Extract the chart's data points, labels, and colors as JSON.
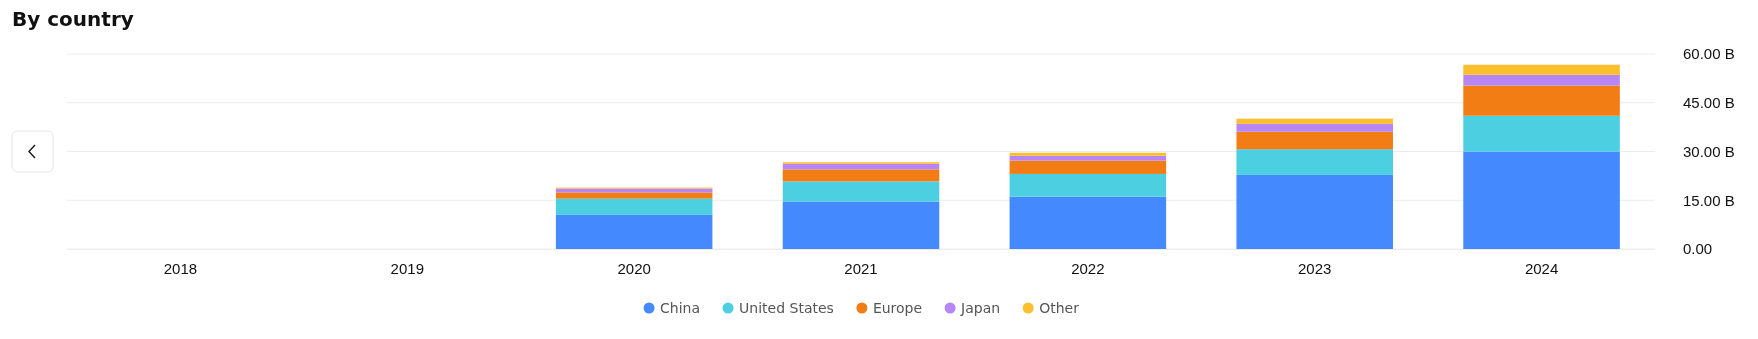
{
  "chart_data": {
    "type": "bar",
    "title": "By country",
    "stacked": true,
    "categories": [
      "2018",
      "2019",
      "2020",
      "2021",
      "2022",
      "2023",
      "2024"
    ],
    "series": [
      {
        "name": "China",
        "color": "#4589ff",
        "values": [
          null,
          null,
          10.5,
          14.6,
          16.1,
          22.8,
          30.0
        ]
      },
      {
        "name": "United States",
        "color": "#4ccfe0",
        "values": [
          null,
          null,
          5.0,
          6.2,
          7.0,
          7.9,
          11.0
        ]
      },
      {
        "name": "Europe",
        "color": "#f27d14",
        "values": [
          null,
          null,
          1.9,
          3.7,
          4.1,
          5.4,
          9.3
        ]
      },
      {
        "name": "Japan",
        "color": "#b586f4",
        "values": [
          null,
          null,
          1.2,
          1.7,
          1.5,
          2.4,
          3.3
        ]
      },
      {
        "name": "Other",
        "color": "#fbbf2e",
        "values": [
          null,
          null,
          0.3,
          0.5,
          0.9,
          1.6,
          3.1
        ]
      }
    ],
    "ylim": [
      0,
      60
    ],
    "yticks": [
      {
        "value": 0,
        "label": "0.00"
      },
      {
        "value": 15,
        "label": "15.00 B"
      },
      {
        "value": 30,
        "label": "30.00 B"
      },
      {
        "value": 45,
        "label": "45.00 B"
      },
      {
        "value": 60,
        "label": "60.00 B"
      }
    ],
    "grid": "y",
    "legend": "bottom"
  }
}
